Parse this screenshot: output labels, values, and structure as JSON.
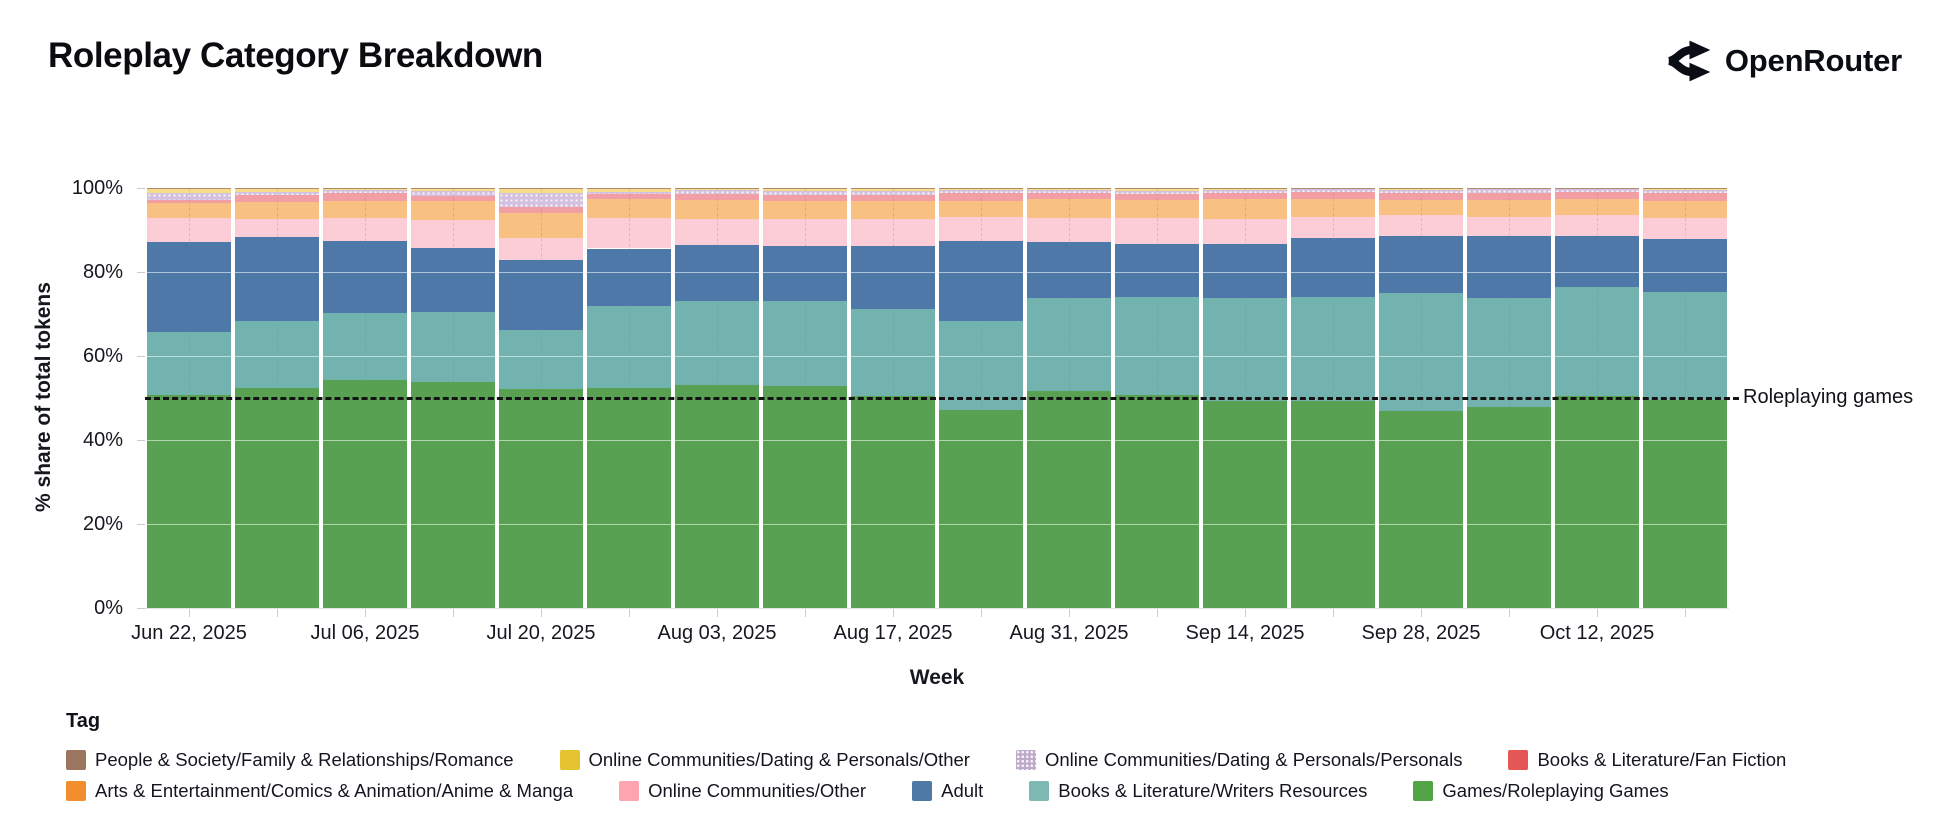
{
  "header": {
    "title": "Roleplay Category Breakdown",
    "brand": "OpenRouter"
  },
  "chart_data": {
    "type": "bar",
    "stacked": true,
    "n_bars": 18,
    "xlabel": "Week",
    "ylabel": "% share of total tokens",
    "unit": "%",
    "yticks": [
      0,
      20,
      40,
      60,
      80,
      100
    ],
    "ylim": [
      0,
      100
    ],
    "x_tick_every": 2,
    "x_tick_labels": [
      "Jun 22, 2025",
      "Jul 06, 2025",
      "Jul 20, 2025",
      "Aug 03, 2025",
      "Aug 17, 2025",
      "Aug 31, 2025",
      "Sep 14, 2025",
      "Sep 28, 2025",
      "Oct 12, 2025"
    ],
    "annotation": {
      "label": "Roleplaying games",
      "y": 50,
      "style": "dashed"
    },
    "series_bottom_to_top": [
      {
        "name": "Games/Roleplaying Games",
        "color": "#58a152",
        "values": [
          50.7,
          52.5,
          54.4,
          53.7,
          52.1,
          52.4,
          53.1,
          52.9,
          50.5,
          47.2,
          51.7,
          50.8,
          49.4,
          49.3,
          47.0,
          47.8,
          50.5,
          49.5
        ]
      },
      {
        "name": "Books & Literature/Writers Resources",
        "color": "#72b3af",
        "values": [
          14.9,
          15.8,
          15.9,
          16.7,
          14.0,
          19.4,
          20.0,
          20.2,
          20.7,
          21.2,
          22.2,
          23.3,
          24.5,
          24.8,
          28.1,
          26.1,
          26.0,
          25.8
        ]
      },
      {
        "name": "Adult",
        "color": "#4d78a8",
        "values": [
          21.6,
          20.0,
          17.1,
          15.4,
          16.8,
          13.8,
          13.4,
          13.2,
          15.1,
          19.0,
          13.2,
          12.5,
          12.7,
          13.9,
          13.5,
          14.7,
          12.1,
          12.5
        ]
      },
      {
        "name": "Online Communities/Other",
        "color": "#fccdd6",
        "values": [
          5.6,
          4.3,
          5.5,
          6.6,
          5.1,
          7.3,
          6.2,
          6.3,
          6.3,
          5.8,
          5.8,
          6.2,
          6.0,
          5.2,
          4.9,
          4.6,
          4.9,
          5.1
        ]
      },
      {
        "name": "Arts & Entertainment/Comics & Animation/Anime & Manga",
        "color": "#f8c081",
        "values": [
          3.7,
          4.1,
          4.1,
          4.6,
          6.1,
          4.6,
          4.4,
          4.4,
          4.4,
          3.8,
          4.4,
          4.3,
          4.7,
          4.1,
          3.6,
          3.9,
          3.8,
          4.1
        ]
      },
      {
        "name": "Books & Literature/Fan Fiction",
        "color": "#f19fa5",
        "values": [
          0.6,
          1.6,
          1.7,
          1.1,
          1.3,
          1.0,
          1.4,
          1.4,
          1.3,
          1.7,
          1.4,
          1.4,
          1.6,
          1.7,
          1.6,
          1.8,
          1.7,
          1.7
        ]
      },
      {
        "name": "Online Communities/Dating & Personals/Personals",
        "color": "#d2c0de",
        "dotted": true,
        "values": [
          1.6,
          0.7,
          0.8,
          1.3,
          3.3,
          0.6,
          1.0,
          1.0,
          0.9,
          0.8,
          0.8,
          0.9,
          0.6,
          0.7,
          0.8,
          0.8,
          0.8,
          0.8
        ]
      },
      {
        "name": "Online Communities/Dating & Personals/Other",
        "color": "#f6dd8a",
        "values": [
          1.0,
          0.7,
          0.3,
          0.4,
          1.1,
          0.7,
          0.3,
          0.4,
          0.6,
          0.3,
          0.3,
          0.4,
          0.3,
          0.2,
          0.3,
          0.2,
          0.1,
          0.3
        ]
      },
      {
        "name": "People & Society/Family & Relationships/Romance",
        "color": "#b18a6e",
        "values": [
          0.3,
          0.3,
          0.2,
          0.2,
          0.2,
          0.2,
          0.2,
          0.2,
          0.2,
          0.2,
          0.2,
          0.2,
          0.2,
          0.1,
          0.2,
          0.1,
          0.1,
          0.2
        ]
      }
    ]
  },
  "legend": {
    "title": "Tag",
    "rows": [
      [
        {
          "label": "People & Society/Family & Relationships/Romance",
          "color": "#9c755f"
        },
        {
          "label": "Online Communities/Dating & Personals/Other",
          "color": "#e3c430"
        },
        {
          "label": "Online Communities/Dating & Personals/Personals",
          "color": "#c0aacb",
          "dotted": true
        },
        {
          "label": "Books & Literature/Fan Fiction",
          "color": "#e45756"
        }
      ],
      [
        {
          "label": "Arts & Entertainment/Comics & Animation/Anime & Manga",
          "color": "#f28e2b"
        },
        {
          "label": "Online Communities/Other",
          "color": "#fda4b0"
        },
        {
          "label": "Adult",
          "color": "#4e79a7"
        },
        {
          "label": "Books & Literature/Writers Resources",
          "color": "#7db8b2"
        },
        {
          "label": "Games/Roleplaying Games",
          "color": "#52a447"
        }
      ]
    ]
  }
}
